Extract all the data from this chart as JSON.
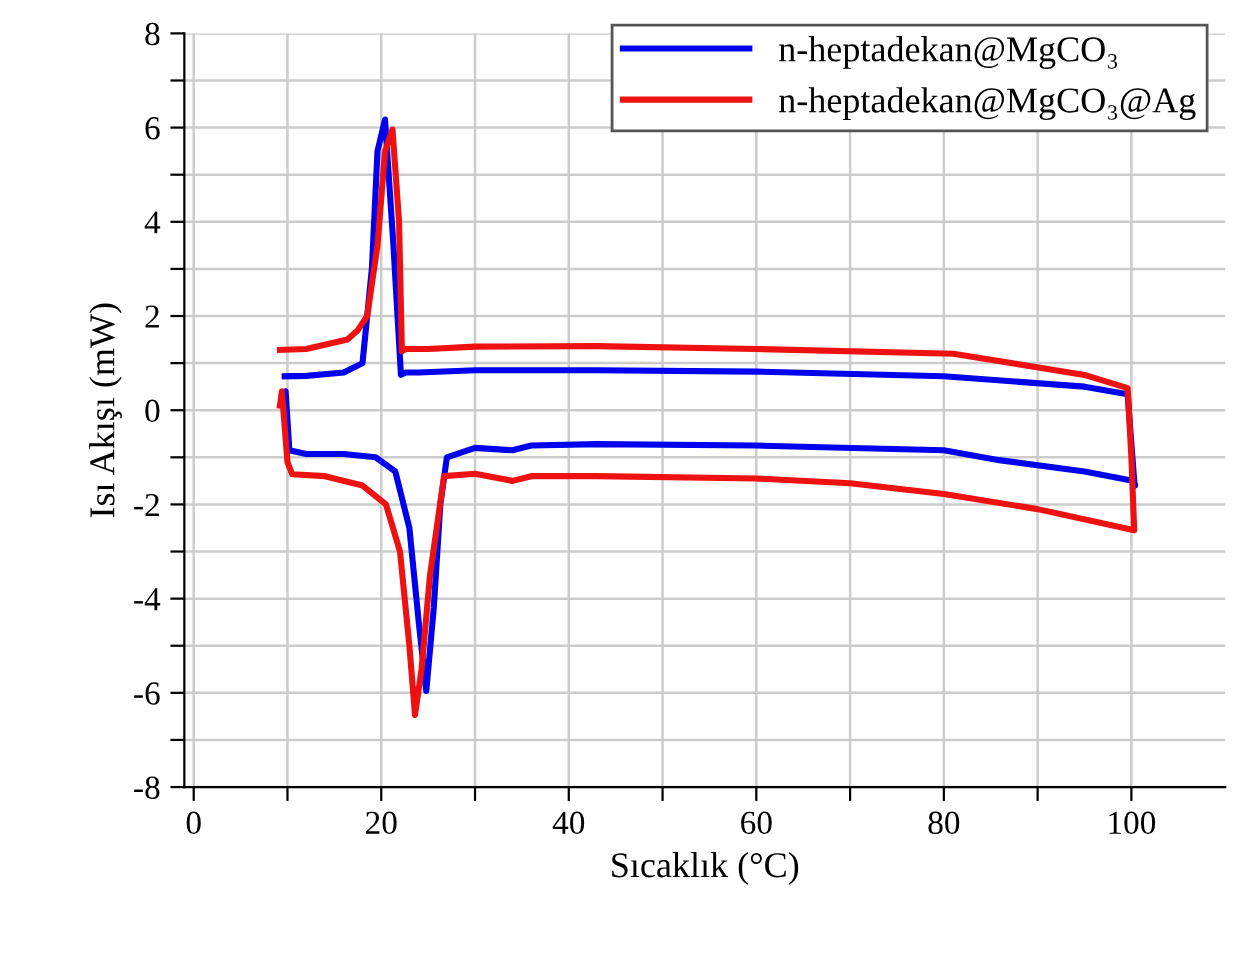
{
  "chart_data": {
    "type": "line",
    "xlabel": "Sıcaklık (°C)",
    "ylabel": "Isı Akışı (mW)",
    "xlim": [
      -1,
      110
    ],
    "ylim": [
      -8,
      8
    ],
    "xticks": [
      0,
      {
        "value": 10,
        "label": null
      },
      20,
      {
        "value": 30,
        "label": null
      },
      40,
      {
        "value": 50,
        "label": null
      },
      60,
      {
        "value": 70,
        "label": null
      },
      80,
      {
        "value": 90,
        "label": null
      },
      100
    ],
    "yticks": [
      -8,
      {
        "value": -7,
        "label": null
      },
      -6,
      {
        "value": -5,
        "label": null
      },
      -4,
      {
        "value": -3,
        "label": null
      },
      -2,
      {
        "value": -1,
        "label": null
      },
      0,
      {
        "value": 1,
        "label": null
      },
      2,
      {
        "value": 3,
        "label": null
      },
      4,
      {
        "value": 5,
        "label": null
      },
      6,
      {
        "value": 7,
        "label": null
      },
      8
    ],
    "grid": true,
    "legend": "top right",
    "line_style": "solid",
    "marker": "none",
    "series": [
      {
        "name": "n-heptadekan@MgCO₃",
        "color": "#0000ee",
        "x": [
          9.7,
          9.8,
          10.2,
          12,
          16,
          19.4,
          21.5,
          23,
          24,
          24.8,
          25.6,
          26.3,
          27,
          30,
          34,
          36,
          43,
          60,
          80,
          85.9,
          95,
          100,
          100.4,
          100.3,
          99.6,
          95,
          80,
          60,
          43,
          30,
          24,
          22.6,
          22.1,
          21.3,
          20.4,
          19.6,
          19,
          18,
          16,
          12,
          9.7
        ],
        "values": [
          0.2,
          0.4,
          -0.85,
          -0.93,
          -0.93,
          -1.0,
          -1.3,
          -2.5,
          -4.5,
          -5.96,
          -4.2,
          -2.0,
          -1.0,
          -0.8,
          -0.85,
          -0.75,
          -0.72,
          -0.75,
          -0.85,
          -1.06,
          -1.3,
          -1.49,
          -1.6,
          -1.5,
          0.34,
          0.5,
          0.72,
          0.82,
          0.85,
          0.85,
          0.8,
          0.8,
          0.75,
          3.5,
          6.17,
          5.5,
          3.0,
          1.0,
          0.8,
          0.73,
          0.72
        ]
      },
      {
        "name": "n-heptadekan@MgCO₃@Ag",
        "color": "#ee1111",
        "x": [
          9.2,
          9.4,
          10,
          10.5,
          14,
          18,
          20.5,
          22,
          23,
          23.6,
          24.3,
          25.2,
          26.7,
          30,
          34,
          36,
          43,
          60,
          70,
          80,
          90,
          100.3,
          100,
          99.6,
          95,
          81,
          60,
          43,
          30,
          25,
          22.6,
          22.2,
          21.9,
          21.2,
          20.4,
          19.6,
          18.5,
          17.5,
          16.4,
          12,
          9.2
        ],
        "values": [
          0.1,
          0.4,
          -1.1,
          -1.36,
          -1.4,
          -1.6,
          -2.0,
          -3.0,
          -5.0,
          -6.47,
          -5.5,
          -3.5,
          -1.4,
          -1.35,
          -1.5,
          -1.4,
          -1.4,
          -1.45,
          -1.55,
          -1.78,
          -2.1,
          -2.55,
          -1.0,
          0.47,
          0.75,
          1.2,
          1.3,
          1.36,
          1.35,
          1.3,
          1.3,
          1.25,
          4.0,
          5.96,
          5.5,
          3.5,
          2.0,
          1.7,
          1.5,
          1.3,
          1.28
        ]
      }
    ]
  }
}
